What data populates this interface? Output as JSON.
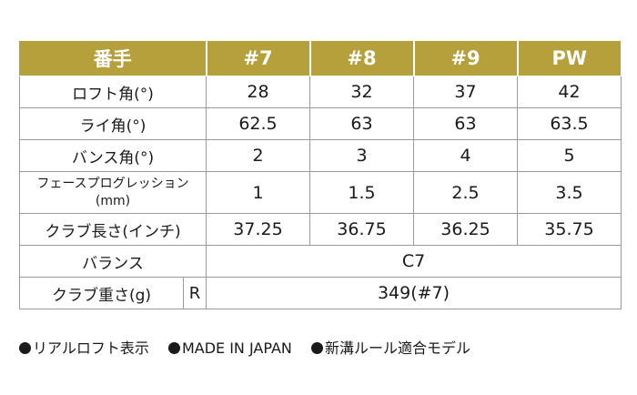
{
  "table": {
    "header": [
      "番手",
      "#7",
      "#8",
      "#9",
      "PW"
    ],
    "rows": [
      {
        "label": "ロフト角(°)",
        "values": [
          "28",
          "32",
          "37",
          "42"
        ]
      },
      {
        "label": "ライ角(°)",
        "values": [
          "62.5",
          "63",
          "63",
          "63.5"
        ]
      },
      {
        "label": "バンス角(°)",
        "values": [
          "2",
          "3",
          "4",
          "5"
        ]
      },
      {
        "label_line1": "フェースプログレッション",
        "label_line2": "(mm)",
        "values": [
          "1",
          "1.5",
          "2.5",
          "3.5"
        ]
      },
      {
        "label": "クラブ長さ(インチ)",
        "values": [
          "37.25",
          "36.75",
          "36.25",
          "35.75"
        ]
      }
    ],
    "balance": {
      "label": "バランス",
      "value": "C7"
    },
    "weight": {
      "label": "クラブ重さ(g)",
      "flex": "R",
      "value": "349(#7)"
    }
  },
  "notes": [
    "リアルロフト表示",
    "MADE IN JAPAN",
    "新溝ルール適合モデル"
  ]
}
